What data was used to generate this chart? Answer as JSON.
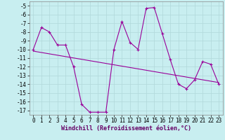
{
  "xlabel": "Windchill (Refroidissement éolien,°C)",
  "x": [
    0,
    1,
    2,
    3,
    4,
    5,
    6,
    7,
    8,
    9,
    10,
    11,
    12,
    13,
    14,
    15,
    16,
    17,
    18,
    19,
    20,
    21,
    22,
    23
  ],
  "y_main": [
    -10,
    -7.5,
    -8.0,
    -9.5,
    -9.5,
    -12.0,
    -16.3,
    -17.2,
    -17.2,
    -17.2,
    -10.0,
    -6.8,
    -9.2,
    -10.0,
    -5.3,
    -5.2,
    -8.2,
    -11.2,
    -14.0,
    -14.5,
    -13.5,
    -11.4,
    -11.7,
    -14.0
  ],
  "trend_x": [
    0,
    23
  ],
  "trend_y": [
    -10.2,
    -13.8
  ],
  "color_main": "#990099",
  "color_trend": "#990099",
  "bg_color": "#c8eef0",
  "grid_color": "#b0d8da",
  "ylim": [
    -17.5,
    -4.5
  ],
  "xlim": [
    -0.5,
    23.5
  ],
  "yticks": [
    -5,
    -6,
    -7,
    -8,
    -9,
    -10,
    -11,
    -12,
    -13,
    -14,
    -15,
    -16,
    -17
  ],
  "xticks": [
    0,
    1,
    2,
    3,
    4,
    5,
    6,
    7,
    8,
    9,
    10,
    11,
    12,
    13,
    14,
    15,
    16,
    17,
    18,
    19,
    20,
    21,
    22,
    23
  ],
  "tick_fontsize": 5.5,
  "xlabel_fontsize": 6.0,
  "marker": "+",
  "marker_size": 3.5,
  "line_width": 0.8
}
